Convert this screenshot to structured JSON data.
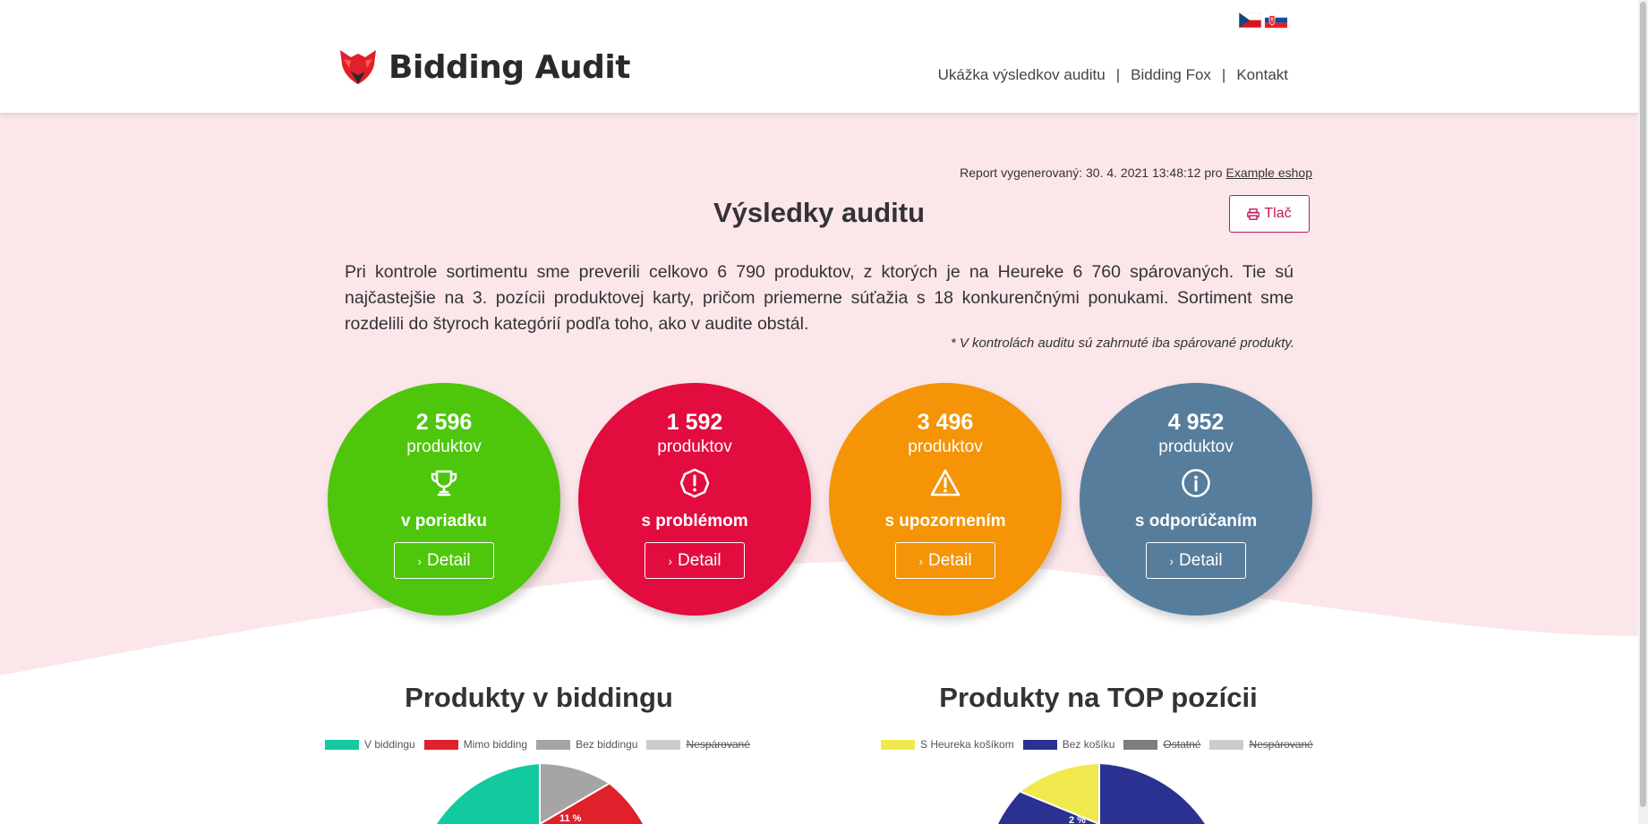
{
  "header": {
    "brand": "Bidding Audit",
    "nav": [
      "Ukážka výsledkov auditu",
      "Bidding Fox",
      "Kontakt"
    ],
    "nav_separator": "|",
    "flags": [
      "czech-flag",
      "slovak-flag"
    ]
  },
  "report": {
    "generated_prefix": "Report vygenerovaný: 30. 4. 2021 13:48:12 pro",
    "shop_link": "Example eshop"
  },
  "main": {
    "title": "Výsledky auditu",
    "print_label": "Tlač",
    "intro": "Pri kontrole sortimentu sme preverili celkovo 6 790 produktov, z ktorých je na Heureke 6 760 spárovaných. Tie sú najčastejšie na 3. pozícii produktovej karty, pričom priemerne súťažia s 18 konkurenčnými ponukami. Sortiment sme rozdelili do štyroch kategórií podľa toho, ako v audite obstál.",
    "note": "* V kontrolách auditu sú zahrnuté iba spárované produkty."
  },
  "cards": [
    {
      "count": "2 596",
      "unit": "produktov",
      "label": "v poriadku",
      "detail": "Detail",
      "color": "#4ec60c",
      "icon": "trophy-icon"
    },
    {
      "count": "1 592",
      "unit": "produktov",
      "label": "s problémom",
      "detail": "Detail",
      "color": "#e20c3e",
      "icon": "exclamation-circle-icon"
    },
    {
      "count": "3 496",
      "unit": "produktov",
      "label": "s upozornením",
      "detail": "Detail",
      "color": "#f49406",
      "icon": "warning-triangle-icon"
    },
    {
      "count": "4 952",
      "unit": "produktov",
      "label": "s odporúčaním",
      "detail": "Detail",
      "color": "#577d9c",
      "icon": "info-circle-icon"
    }
  ],
  "charts": {
    "bidding": {
      "title": "Produkty v biddingu",
      "legend": [
        {
          "label": "V biddingu",
          "color": "#12c9a0",
          "struck": false
        },
        {
          "label": "Mimo bidding",
          "color": "#e0202b",
          "struck": false
        },
        {
          "label": "Bez biddingu",
          "color": "#a5a5a5",
          "struck": false
        },
        {
          "label": "Nespárované",
          "color": "#cccccc",
          "struck": true
        }
      ],
      "visible_label": "11 %"
    },
    "top": {
      "title": "Produkty na TOP pozícii",
      "legend": [
        {
          "label": "S Heureka košíkom",
          "color": "#efe94e",
          "struck": false
        },
        {
          "label": "Bez košíku",
          "color": "#2b3191",
          "struck": false
        },
        {
          "label": "Ostatné",
          "color": "#7d7d7d",
          "struck": true
        },
        {
          "label": "Nespárované",
          "color": "#cccccc",
          "struck": true
        }
      ],
      "visible_label": "2 %"
    }
  }
}
